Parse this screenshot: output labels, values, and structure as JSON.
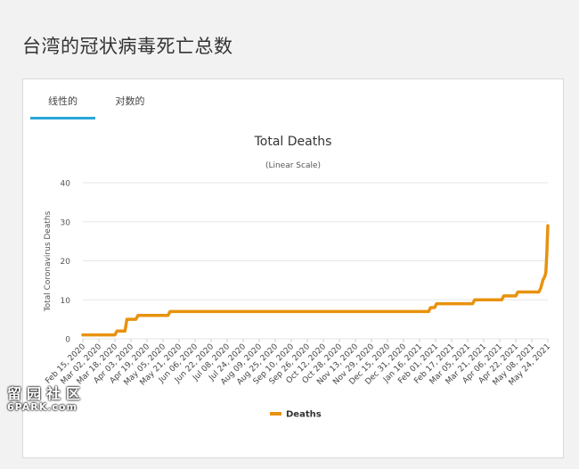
{
  "page": {
    "title": "台湾的冠状病毒死亡总数"
  },
  "tabs": [
    {
      "label": "线性的",
      "active": true
    },
    {
      "label": "对数的",
      "active": false
    }
  ],
  "watermark": {
    "line1": "留园社区",
    "line2": "6PARK.com"
  },
  "colors": {
    "line": "#e8920f",
    "tab_accent": "#2aa6d8",
    "grid": "#e6e6e6"
  },
  "chart_data": {
    "type": "line",
    "title": "Total Deaths",
    "subtitle": "(Linear Scale)",
    "ylabel": "Total Coronavirus Deaths",
    "xlabel": "",
    "ylim": [
      0,
      40
    ],
    "yticks": [
      0,
      10,
      20,
      30,
      40
    ],
    "grid": true,
    "legend_position": "bottom-center",
    "x_tick_labels": [
      "Feb 15, 2020",
      "Mar 02, 2020",
      "Mar 18, 2020",
      "Apr 03, 2020",
      "Apr 19, 2020",
      "May 05, 2020",
      "May 21, 2020",
      "Jun 06, 2020",
      "Jun 22, 2020",
      "Jul 08, 2020",
      "Jul 24, 2020",
      "Aug 09, 2020",
      "Aug 25, 2020",
      "Sep 10, 2020",
      "Sep 26, 2020",
      "Oct 12, 2020",
      "Oct 28, 2020",
      "Nov 13, 2020",
      "Nov 29, 2020",
      "Dec 15, 2020",
      "Dec 31, 2020",
      "Jan 16, 2021",
      "Feb 01, 2021",
      "Feb 17, 2021",
      "Mar 05, 2021",
      "Mar 21, 2021",
      "Apr 06, 2021",
      "Apr 22, 2021",
      "May 08, 2021",
      "May 24, 2021"
    ],
    "series": [
      {
        "name": "Deaths",
        "points": [
          [
            "2020-02-15",
            1
          ],
          [
            "2020-03-18",
            1
          ],
          [
            "2020-03-20",
            2
          ],
          [
            "2020-03-28",
            2
          ],
          [
            "2020-03-30",
            5
          ],
          [
            "2020-04-08",
            5
          ],
          [
            "2020-04-10",
            6
          ],
          [
            "2020-05-10",
            6
          ],
          [
            "2020-05-12",
            7
          ],
          [
            "2021-01-25",
            7
          ],
          [
            "2021-01-27",
            8
          ],
          [
            "2021-01-31",
            8
          ],
          [
            "2021-02-02",
            9
          ],
          [
            "2021-03-10",
            9
          ],
          [
            "2021-03-12",
            10
          ],
          [
            "2021-04-08",
            10
          ],
          [
            "2021-04-10",
            11
          ],
          [
            "2021-04-22",
            11
          ],
          [
            "2021-04-24",
            12
          ],
          [
            "2021-05-15",
            12
          ],
          [
            "2021-05-17",
            13
          ],
          [
            "2021-05-19",
            15
          ],
          [
            "2021-05-21",
            16
          ],
          [
            "2021-05-22",
            17
          ],
          [
            "2021-05-23",
            22
          ],
          [
            "2021-05-24",
            29
          ]
        ]
      }
    ]
  }
}
